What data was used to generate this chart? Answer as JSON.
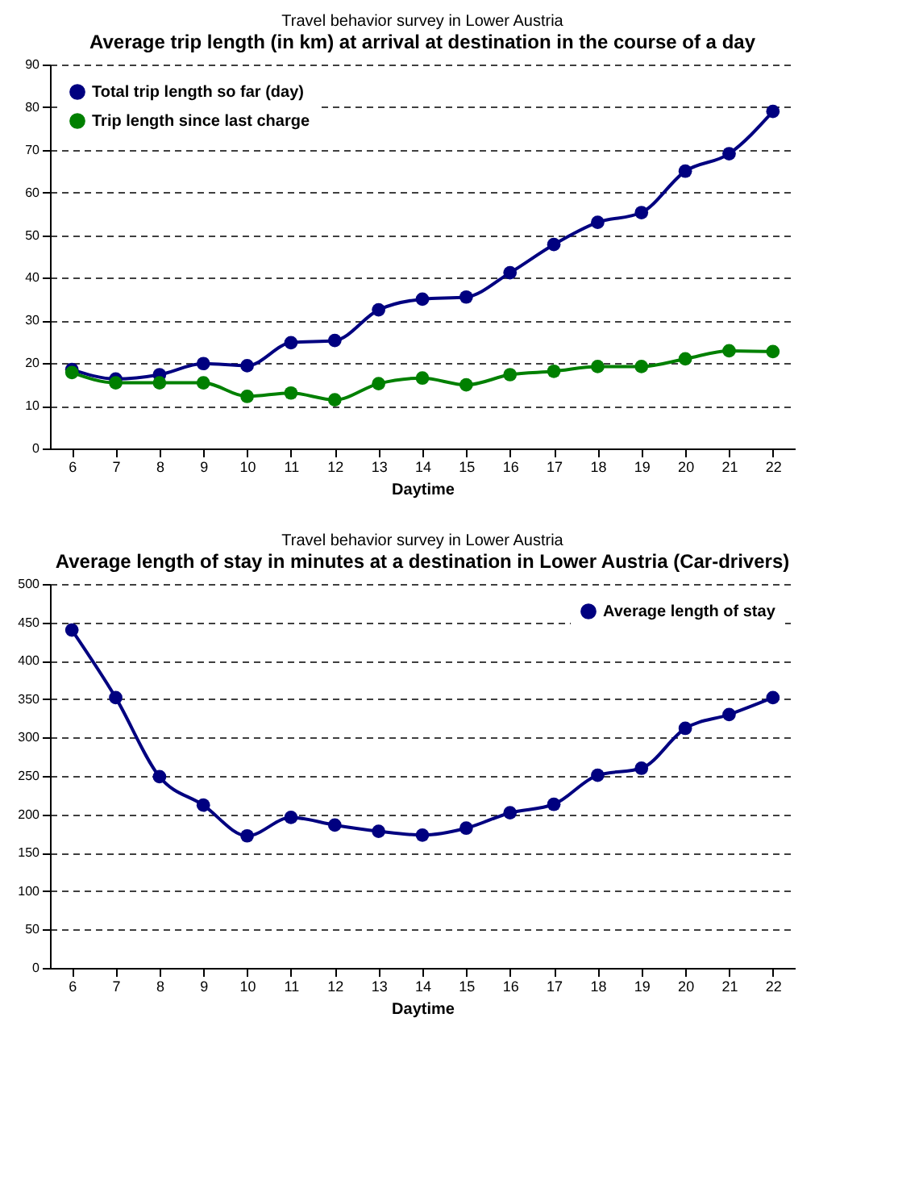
{
  "chart_data": [
    {
      "type": "line",
      "subtitle": "Travel behavior survey in Lower Austria",
      "title": "Average trip length (in km) at arrival at destination in the course of a day",
      "xlabel": "Daytime",
      "categories": [
        "6",
        "7",
        "8",
        "9",
        "10",
        "11",
        "12",
        "13",
        "14",
        "15",
        "16",
        "17",
        "18",
        "19",
        "20",
        "21",
        "22"
      ],
      "series": [
        {
          "name": "Total trip length so far (day)",
          "color": "#000080",
          "values": [
            18.5,
            16.3,
            17.3,
            19.9,
            19.4,
            24.8,
            25.3,
            32.5,
            35,
            35.5,
            41.2,
            47.8,
            53,
            55.3,
            65,
            69.1,
            79
          ]
        },
        {
          "name": "Trip length since last charge",
          "color": "#008000",
          "values": [
            17.8,
            15.4,
            15.4,
            15.4,
            12.2,
            13,
            11.4,
            15.2,
            16.5,
            14.9,
            17.3,
            18.1,
            19.2,
            19.2,
            21,
            22.9,
            22.7
          ]
        }
      ],
      "ylim": [
        0,
        90
      ],
      "yticks": [
        0,
        10,
        20,
        30,
        40,
        50,
        60,
        70,
        80,
        90
      ],
      "grid": "y",
      "legend": "top left",
      "marker": "circle",
      "line_style": "solid"
    },
    {
      "type": "line",
      "subtitle": "Travel behavior survey in Lower Austria",
      "title": "Average length of stay in minutes at a destination in Lower Austria (Car-drivers)",
      "xlabel": "Daytime",
      "categories": [
        "6",
        "7",
        "8",
        "9",
        "10",
        "11",
        "12",
        "13",
        "14",
        "15",
        "16",
        "17",
        "18",
        "19",
        "20",
        "21",
        "22"
      ],
      "series": [
        {
          "name": "Average length of stay",
          "color": "#000080",
          "values": [
            440,
            352,
            249,
            212,
            172,
            196,
            186,
            178,
            173,
            182,
            202,
            213,
            251,
            260,
            312,
            330,
            352
          ]
        }
      ],
      "ylim": [
        0,
        500
      ],
      "yticks": [
        0,
        50,
        100,
        150,
        200,
        250,
        300,
        350,
        400,
        450,
        500
      ],
      "grid": "y",
      "legend": "top right",
      "marker": "circle",
      "line_style": "solid"
    }
  ]
}
